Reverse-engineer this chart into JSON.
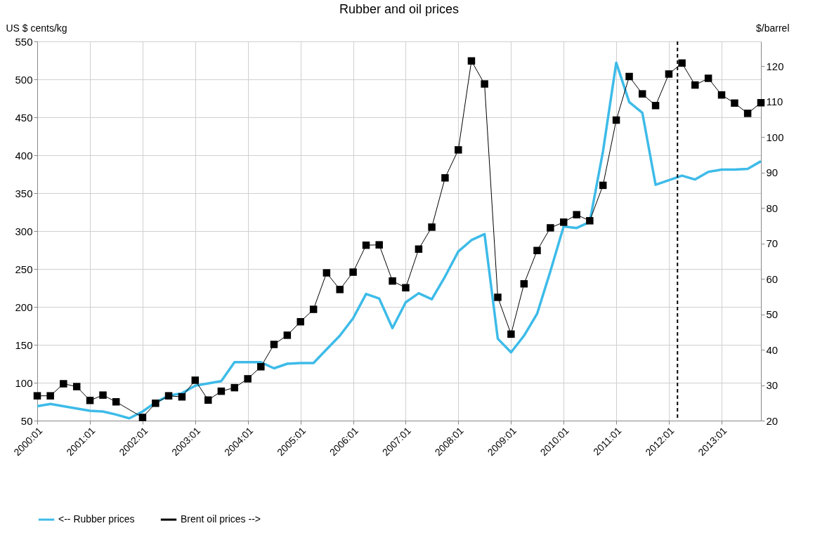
{
  "chart_data": {
    "type": "line",
    "title": "Rubber and oil prices",
    "ylabel": "US $ cents/kg",
    "y2label": "$/barrel",
    "x": [
      "2000-01",
      "2000-04",
      "2000-07",
      "2000-10",
      "2001-01",
      "2001-04",
      "2001-07",
      "2001-10",
      "2002-01",
      "2002-04",
      "2002-07",
      "2002-10",
      "2003-01",
      "2003-04",
      "2003-07",
      "2003-10",
      "2004-01",
      "2004-04",
      "2004-07",
      "2004-10",
      "2005-01",
      "2005-04",
      "2005-07",
      "2005-10",
      "2006-01",
      "2006-04",
      "2006-07",
      "2006-10",
      "2007-01",
      "2007-04",
      "2007-07",
      "2007-10",
      "2008-01",
      "2008-04",
      "2008-07",
      "2008-10",
      "2009-01",
      "2009-04",
      "2009-07",
      "2009-10",
      "2010-01",
      "2010-04",
      "2010-07",
      "2010-10",
      "2011-01",
      "2011-04",
      "2011-07",
      "2011-10",
      "2012-01",
      "2012-04",
      "2012-07",
      "2012-10",
      "2013-01",
      "2013-04",
      "2013-07",
      "2013-10"
    ],
    "series": [
      {
        "name": "<-- Rubber prices",
        "color": "#3dbbe8",
        "marker": "none",
        "values": [
          69,
          72,
          69,
          66,
          63,
          62,
          58,
          53,
          62,
          74,
          83,
          86,
          96,
          99,
          102,
          127,
          127,
          127,
          119,
          125,
          126,
          126,
          144,
          162,
          185,
          217,
          211,
          172,
          206,
          218,
          210,
          240,
          273,
          288,
          296,
          158,
          140,
          162,
          191,
          247,
          306,
          304,
          312,
          405,
          522,
          470,
          456,
          361,
          367,
          373,
          368,
          378,
          381,
          381,
          382,
          392
        ]
      },
      {
        "name": "Brent oil prices -->",
        "color": "#000000",
        "marker": "square",
        "axis": "y2",
        "x": [
          "2000-01",
          "2000-04",
          "2000-07",
          "2000-10",
          "2001-01",
          "2001-04",
          "2001-07",
          "2002-01",
          "2002-04",
          "2002-07",
          "2002-10",
          "2003-01",
          "2003-04",
          "2003-07",
          "2003-10",
          "2004-01",
          "2004-04",
          "2004-07",
          "2004-10",
          "2005-01",
          "2005-04",
          "2005-07",
          "2005-10",
          "2006-01",
          "2006-04",
          "2006-07",
          "2006-10",
          "2007-01",
          "2007-04",
          "2007-07",
          "2007-10",
          "2008-01",
          "2008-04",
          "2008-07",
          "2008-10",
          "2009-01",
          "2009-04",
          "2009-07",
          "2009-10",
          "2010-01",
          "2010-04",
          "2010-07",
          "2010-10",
          "2011-01",
          "2011-04",
          "2011-07",
          "2011-10",
          "2012-01",
          "2012-04",
          "2012-07",
          "2012-10",
          "2013-01",
          "2013-04",
          "2013-07",
          "2013-10"
        ],
        "values": [
          27,
          27,
          30.4,
          29.6,
          25.7,
          27.2,
          25.3,
          20.9,
          24.9,
          27,
          26.7,
          31.4,
          25.8,
          28.3,
          29.3,
          31.8,
          35.2,
          41.5,
          44.1,
          47.9,
          51.4,
          61.7,
          57,
          61.9,
          69.5,
          69.6,
          59.4,
          57.5,
          68.4,
          74.6,
          88.5,
          96.4,
          121.5,
          115,
          54.8,
          44.4,
          58.6,
          68,
          74.4,
          76,
          78.1,
          76.4,
          86.4,
          104.8,
          117.1,
          112.2,
          108.9,
          117.8,
          120.9,
          114.7,
          116.6,
          111.9,
          109.6,
          106.7,
          109.7
        ]
      }
    ],
    "xlim": [
      "2000-01",
      "2013-10"
    ],
    "xticks": [
      {
        "value": "2000-01",
        "label": "2000:01"
      },
      {
        "value": "2001-01",
        "label": "2001:01"
      },
      {
        "value": "2002-01",
        "label": "2002:01"
      },
      {
        "value": "2003-01",
        "label": "2003:01"
      },
      {
        "value": "2004-01",
        "label": "2004:01"
      },
      {
        "value": "2005-01",
        "label": "2005:01"
      },
      {
        "value": "2006-01",
        "label": "2006:01"
      },
      {
        "value": "2007-01",
        "label": "2007:01"
      },
      {
        "value": "2008-01",
        "label": "2008:01"
      },
      {
        "value": "2009-01",
        "label": "2009:01"
      },
      {
        "value": "2010-01",
        "label": "2010:01"
      },
      {
        "value": "2011-01",
        "label": "2011:01"
      },
      {
        "value": "2012-01",
        "label": "2012:01"
      },
      {
        "value": "2013-01",
        "label": "2013:01"
      }
    ],
    "ylim": [
      50,
      550
    ],
    "yticks": [
      50,
      100,
      150,
      200,
      250,
      300,
      350,
      400,
      450,
      500,
      550
    ],
    "y2lim": [
      20,
      127
    ],
    "y2ticks": [
      20,
      30,
      40,
      50,
      60,
      70,
      80,
      90,
      100,
      110,
      120
    ],
    "ref_lines": [
      {
        "axis": "x",
        "value": "2012-03",
        "color": "#000000",
        "line_style": "dashed"
      }
    ],
    "grid": true,
    "legend": "bottom"
  }
}
